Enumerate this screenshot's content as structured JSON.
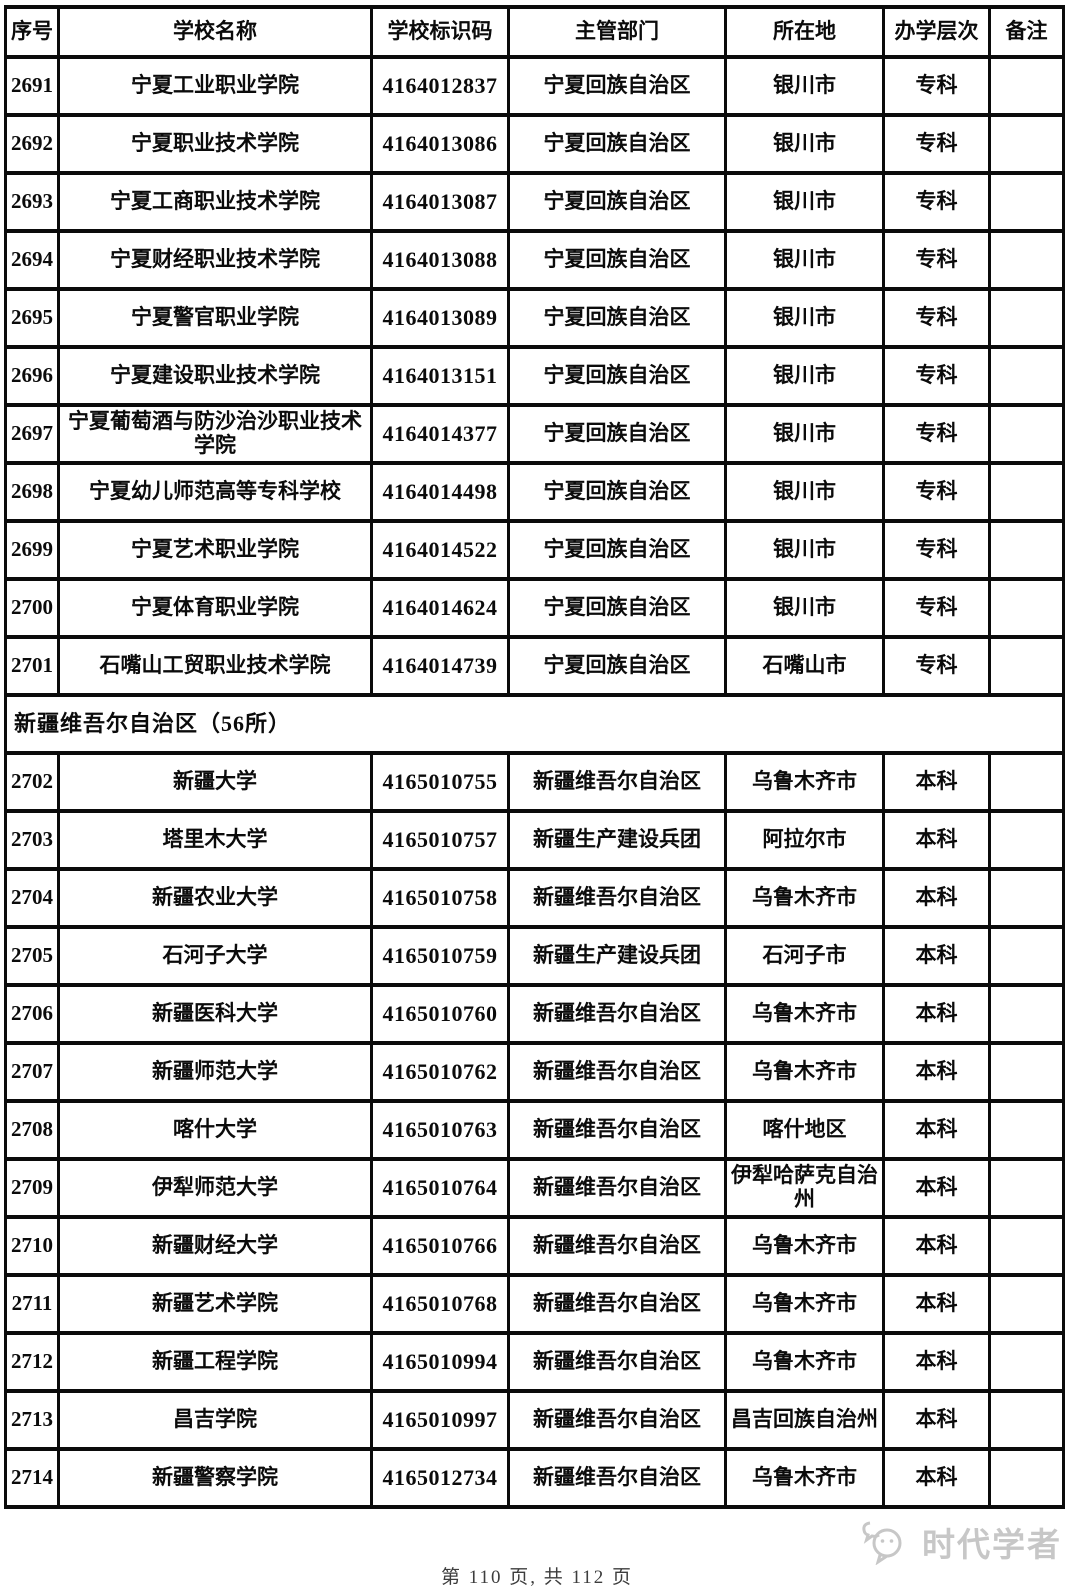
{
  "table": {
    "columns": [
      {
        "key": "no",
        "label": "序号"
      },
      {
        "key": "name",
        "label": "学校名称"
      },
      {
        "key": "code",
        "label": "学校标识码"
      },
      {
        "key": "dept",
        "label": "主管部门"
      },
      {
        "key": "city",
        "label": "所在地"
      },
      {
        "key": "level",
        "label": "办学层次"
      },
      {
        "key": "note",
        "label": "备注"
      }
    ],
    "rows": [
      {
        "type": "data",
        "no": "2691",
        "name": "宁夏工业职业学院",
        "code": "4164012837",
        "dept": "宁夏回族自治区",
        "city": "银川市",
        "level": "专科",
        "note": ""
      },
      {
        "type": "data",
        "no": "2692",
        "name": "宁夏职业技术学院",
        "code": "4164013086",
        "dept": "宁夏回族自治区",
        "city": "银川市",
        "level": "专科",
        "note": ""
      },
      {
        "type": "data",
        "no": "2693",
        "name": "宁夏工商职业技术学院",
        "code": "4164013087",
        "dept": "宁夏回族自治区",
        "city": "银川市",
        "level": "专科",
        "note": ""
      },
      {
        "type": "data",
        "no": "2694",
        "name": "宁夏财经职业技术学院",
        "code": "4164013088",
        "dept": "宁夏回族自治区",
        "city": "银川市",
        "level": "专科",
        "note": ""
      },
      {
        "type": "data",
        "no": "2695",
        "name": "宁夏警官职业学院",
        "code": "4164013089",
        "dept": "宁夏回族自治区",
        "city": "银川市",
        "level": "专科",
        "note": ""
      },
      {
        "type": "data",
        "no": "2696",
        "name": "宁夏建设职业技术学院",
        "code": "4164013151",
        "dept": "宁夏回族自治区",
        "city": "银川市",
        "level": "专科",
        "note": ""
      },
      {
        "type": "data",
        "no": "2697",
        "name": "宁夏葡萄酒与防沙治沙职业技术学院",
        "code": "4164014377",
        "dept": "宁夏回族自治区",
        "city": "银川市",
        "level": "专科",
        "note": ""
      },
      {
        "type": "data",
        "no": "2698",
        "name": "宁夏幼儿师范高等专科学校",
        "code": "4164014498",
        "dept": "宁夏回族自治区",
        "city": "银川市",
        "level": "专科",
        "note": ""
      },
      {
        "type": "data",
        "no": "2699",
        "name": "宁夏艺术职业学院",
        "code": "4164014522",
        "dept": "宁夏回族自治区",
        "city": "银川市",
        "level": "专科",
        "note": ""
      },
      {
        "type": "data",
        "no": "2700",
        "name": "宁夏体育职业学院",
        "code": "4164014624",
        "dept": "宁夏回族自治区",
        "city": "银川市",
        "level": "专科",
        "note": ""
      },
      {
        "type": "data",
        "no": "2701",
        "name": "石嘴山工贸职业技术学院",
        "code": "4164014739",
        "dept": "宁夏回族自治区",
        "city": "石嘴山市",
        "level": "专科",
        "note": ""
      },
      {
        "type": "section",
        "label": "新疆维吾尔自治区（56所）"
      },
      {
        "type": "data",
        "no": "2702",
        "name": "新疆大学",
        "code": "4165010755",
        "dept": "新疆维吾尔自治区",
        "city": "乌鲁木齐市",
        "level": "本科",
        "note": ""
      },
      {
        "type": "data",
        "no": "2703",
        "name": "塔里木大学",
        "code": "4165010757",
        "dept": "新疆生产建设兵团",
        "city": "阿拉尔市",
        "level": "本科",
        "note": ""
      },
      {
        "type": "data",
        "no": "2704",
        "name": "新疆农业大学",
        "code": "4165010758",
        "dept": "新疆维吾尔自治区",
        "city": "乌鲁木齐市",
        "level": "本科",
        "note": ""
      },
      {
        "type": "data",
        "no": "2705",
        "name": "石河子大学",
        "code": "4165010759",
        "dept": "新疆生产建设兵团",
        "city": "石河子市",
        "level": "本科",
        "note": ""
      },
      {
        "type": "data",
        "no": "2706",
        "name": "新疆医科大学",
        "code": "4165010760",
        "dept": "新疆维吾尔自治区",
        "city": "乌鲁木齐市",
        "level": "本科",
        "note": ""
      },
      {
        "type": "data",
        "no": "2707",
        "name": "新疆师范大学",
        "code": "4165010762",
        "dept": "新疆维吾尔自治区",
        "city": "乌鲁木齐市",
        "level": "本科",
        "note": ""
      },
      {
        "type": "data",
        "no": "2708",
        "name": "喀什大学",
        "code": "4165010763",
        "dept": "新疆维吾尔自治区",
        "city": "喀什地区",
        "level": "本科",
        "note": ""
      },
      {
        "type": "data",
        "no": "2709",
        "name": "伊犁师范大学",
        "code": "4165010764",
        "dept": "新疆维吾尔自治区",
        "city": "伊犁哈萨克自治州",
        "level": "本科",
        "note": ""
      },
      {
        "type": "data",
        "no": "2710",
        "name": "新疆财经大学",
        "code": "4165010766",
        "dept": "新疆维吾尔自治区",
        "city": "乌鲁木齐市",
        "level": "本科",
        "note": ""
      },
      {
        "type": "data",
        "no": "2711",
        "name": "新疆艺术学院",
        "code": "4165010768",
        "dept": "新疆维吾尔自治区",
        "city": "乌鲁木齐市",
        "level": "本科",
        "note": ""
      },
      {
        "type": "data",
        "no": "2712",
        "name": "新疆工程学院",
        "code": "4165010994",
        "dept": "新疆维吾尔自治区",
        "city": "乌鲁木齐市",
        "level": "本科",
        "note": ""
      },
      {
        "type": "data",
        "no": "2713",
        "name": "昌吉学院",
        "code": "4165010997",
        "dept": "新疆维吾尔自治区",
        "city": "昌吉回族自治州",
        "level": "本科",
        "note": ""
      },
      {
        "type": "data",
        "no": "2714",
        "name": "新疆警察学院",
        "code": "4165012734",
        "dept": "新疆维吾尔自治区",
        "city": "乌鲁木齐市",
        "level": "本科",
        "note": ""
      }
    ]
  },
  "footer": {
    "page_text": "第 110 页, 共 112 页"
  },
  "watermark": {
    "brand": "时代学者",
    "color": "#c7c7c7"
  },
  "colors": {
    "border": "#0b0b0b",
    "text": "#0b0b0b",
    "footer_text": "#3d3d3d"
  }
}
